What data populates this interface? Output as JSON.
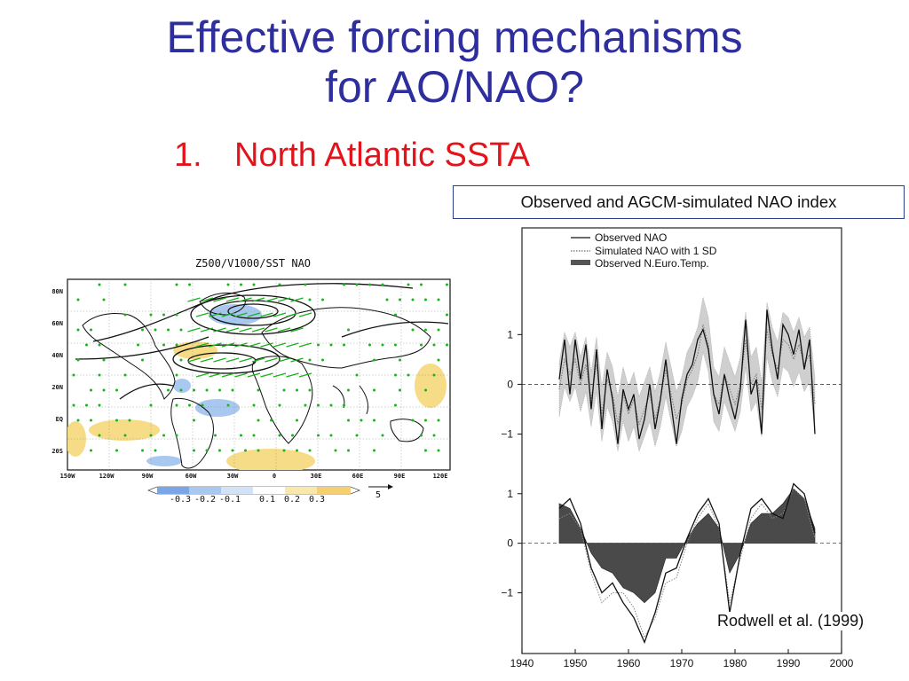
{
  "slide": {
    "title_line1": "Effective forcing mechanisms",
    "title_line2": "for AO/NAO?",
    "list_number": "1.",
    "list_item": "North Atlantic SSTA",
    "box_label": "Observed and AGCM-simulated NAO index",
    "citation": "Rodwell et al. (1999)",
    "colors": {
      "title": "#2e2e9e",
      "subtitle": "#e3131b",
      "box_border": "#2a3e8e"
    }
  },
  "map": {
    "title": "Z500/V1000/SST NAO",
    "lat_labels": [
      "80N",
      "60N",
      "40N",
      "20N",
      "EQ",
      "20S"
    ],
    "lon_labels": [
      "150W",
      "120W",
      "90W",
      "60W",
      "30W",
      "0",
      "30E",
      "60E",
      "90E",
      "120E"
    ],
    "colorbar_ticks": [
      "-0.3",
      "-0.2",
      "-0.1",
      "0.1",
      "0.2",
      "0.3"
    ],
    "vector_ref": "5",
    "colors": {
      "ocean_warm": "#f6dc86",
      "ocean_cool": "#a9c8f0",
      "vectors": "#18b41a",
      "contours": "#111111"
    }
  },
  "chart_data": {
    "type": "line",
    "legend": [
      "Observed NAO",
      "Simulated NAO with 1 SD",
      "Observed N.Euro.Temp."
    ],
    "legend_position": "top-left",
    "x_ticks": [
      "1940",
      "1950",
      "1960",
      "1970",
      "1980",
      "1990",
      "2000"
    ],
    "xlim": [
      1940,
      2000
    ],
    "upper_panel": {
      "y_ticks": [
        "1",
        "0",
        "−1"
      ],
      "ylim": [
        -1.9,
        2.2
      ],
      "x": [
        1947,
        1948,
        1949,
        1950,
        1951,
        1952,
        1953,
        1954,
        1955,
        1956,
        1957,
        1958,
        1959,
        1960,
        1961,
        1962,
        1963,
        1964,
        1965,
        1966,
        1967,
        1968,
        1969,
        1970,
        1971,
        1972,
        1973,
        1974,
        1975,
        1976,
        1977,
        1978,
        1979,
        1980,
        1981,
        1982,
        1983,
        1984,
        1985,
        1986,
        1987,
        1988,
        1989,
        1990,
        1991,
        1992,
        1993,
        1994,
        1995
      ],
      "series": [
        {
          "name": "Observed NAO",
          "values": [
            0.1,
            0.9,
            -0.2,
            0.9,
            0.1,
            0.8,
            -0.5,
            0.7,
            -0.9,
            0.3,
            -0.3,
            -1.2,
            -0.1,
            -0.5,
            -0.2,
            -1.1,
            -0.7,
            0.0,
            -0.9,
            -0.3,
            0.5,
            -0.4,
            -1.2,
            -0.3,
            0.2,
            0.4,
            0.9,
            1.1,
            0.7,
            -0.2,
            -0.6,
            0.2,
            -0.3,
            -0.7,
            -0.1,
            1.3,
            -0.2,
            0.1,
            -1.0,
            1.5,
            0.7,
            0.1,
            1.2,
            1.0,
            0.6,
            1.1,
            0.3,
            0.9,
            -1.0
          ]
        },
        {
          "name": "Simulated NAO with 1 SD",
          "values": [
            -0.1,
            0.5,
            0.2,
            0.5,
            0.0,
            0.4,
            -0.3,
            0.4,
            -0.6,
            0.1,
            -0.2,
            -0.8,
            -0.2,
            -0.6,
            -0.3,
            -0.8,
            -0.5,
            -0.2,
            -0.7,
            -0.3,
            0.3,
            -0.2,
            -0.7,
            -0.4,
            0.1,
            0.3,
            0.6,
            1.2,
            0.8,
            -0.2,
            -0.4,
            0.2,
            -0.1,
            -0.4,
            0.0,
            0.9,
            0.0,
            0.2,
            -0.5,
            1.1,
            0.6,
            0.3,
            0.9,
            0.8,
            0.5,
            0.8,
            0.4,
            0.6,
            -0.4
          ]
        }
      ]
    },
    "lower_panel": {
      "y_ticks": [
        "1",
        "0",
        "−1"
      ],
      "ylim": [
        -2.1,
        1.3
      ],
      "x": [
        1947,
        1949,
        1951,
        1953,
        1955,
        1957,
        1959,
        1961,
        1963,
        1965,
        1967,
        1969,
        1971,
        1973,
        1975,
        1977,
        1979,
        1981,
        1983,
        1985,
        1987,
        1989,
        1991,
        1993,
        1995
      ],
      "series": [
        {
          "name": "Observed NAO",
          "values": [
            0.7,
            0.9,
            0.4,
            -0.5,
            -1.0,
            -0.8,
            -1.2,
            -1.5,
            -2.0,
            -1.4,
            -0.6,
            -0.5,
            0.1,
            0.6,
            0.9,
            0.4,
            -1.4,
            -0.2,
            0.7,
            0.9,
            0.6,
            0.5,
            1.2,
            1.0,
            0.2
          ]
        },
        {
          "name": "Simulated NAO with 1 SD",
          "values": [
            0.5,
            0.6,
            0.3,
            -0.6,
            -1.2,
            -1.0,
            -1.0,
            -1.3,
            -1.9,
            -1.5,
            -0.8,
            -0.7,
            0.0,
            0.5,
            0.8,
            0.3,
            -1.2,
            -0.3,
            0.5,
            0.8,
            0.5,
            0.6,
            1.1,
            0.9,
            0.1
          ]
        },
        {
          "name": "Observed N.Euro.Temp.",
          "values": [
            0.8,
            0.7,
            0.3,
            -0.2,
            -0.5,
            -0.6,
            -0.9,
            -1.0,
            -1.2,
            -1.0,
            -0.3,
            -0.3,
            0.1,
            0.4,
            0.6,
            0.3,
            -0.6,
            -0.2,
            0.4,
            0.6,
            0.6,
            0.8,
            1.1,
            0.9,
            0.3
          ]
        }
      ]
    }
  }
}
